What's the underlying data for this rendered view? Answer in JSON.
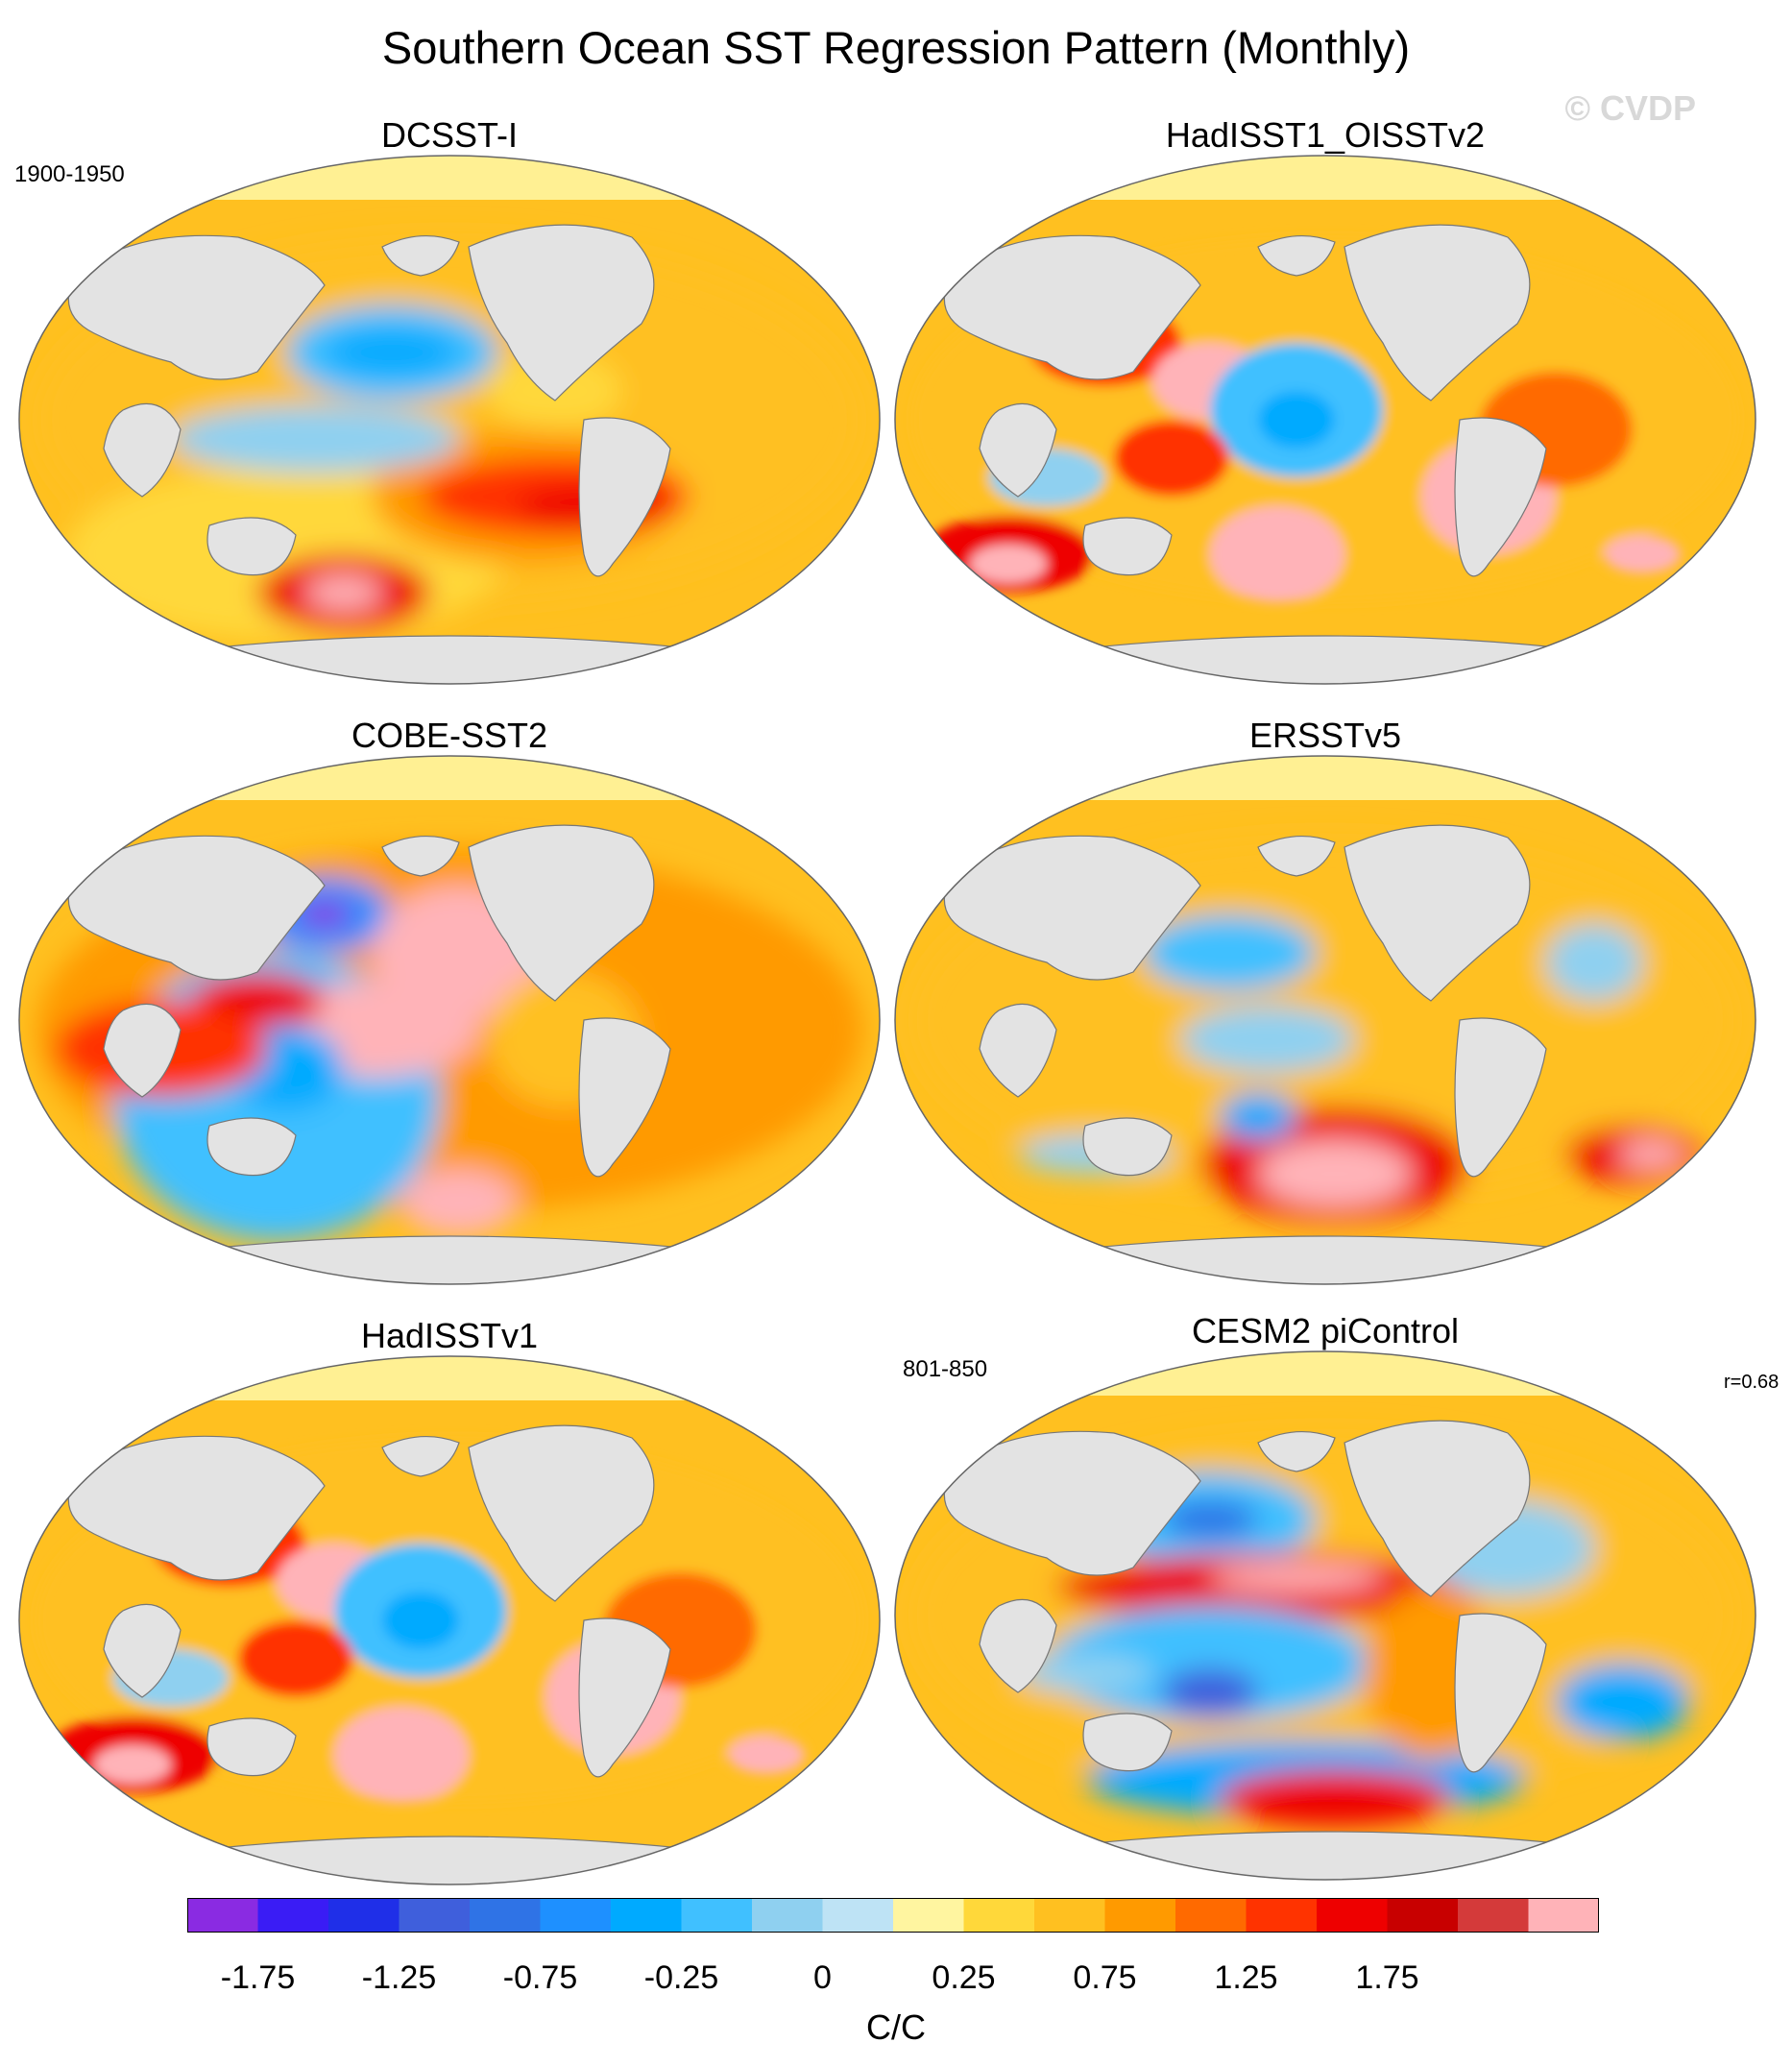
{
  "title": "Southern Ocean SST Regression Pattern (Monthly)",
  "watermark": "© CVDP",
  "notes": {
    "obs_period": "1900-1950",
    "model_period": "801-850",
    "pattern_correlation": "r=0.68"
  },
  "panels": [
    {
      "id": "dcssti",
      "title": "DCSST-I",
      "style": "smooth-a"
    },
    {
      "id": "hadisst1_oisstv2",
      "title": "HadISST1_OISSTv2",
      "style": "patchy"
    },
    {
      "id": "cobe",
      "title": "COBE-SST2",
      "style": "smooth-b"
    },
    {
      "id": "ersst",
      "title": "ERSSTv5",
      "style": "smooth-c"
    },
    {
      "id": "hadisstv1",
      "title": "HadISSTv1",
      "style": "patchy"
    },
    {
      "id": "cesm2",
      "title": "CESM2 piControl",
      "style": "model"
    }
  ],
  "colorbar": {
    "unit": "C/C",
    "colors": [
      "#8a2be2",
      "#3a1cf5",
      "#1f2fe8",
      "#3f5fdc",
      "#2f73e6",
      "#1e90ff",
      "#00aaff",
      "#40c0ff",
      "#8fd0f0",
      "#bee3f5",
      "#fff5a0",
      "#ffd83a",
      "#ffc020",
      "#ff9a00",
      "#ff6a00",
      "#ff3300",
      "#ee0000",
      "#c80000",
      "#d43a3a",
      "#ffb3b8"
    ],
    "labels": [
      "-1.75",
      "-1.25",
      "-0.75",
      "-0.25",
      "0",
      "0.25",
      "0.75",
      "1.25",
      "1.75"
    ]
  }
}
